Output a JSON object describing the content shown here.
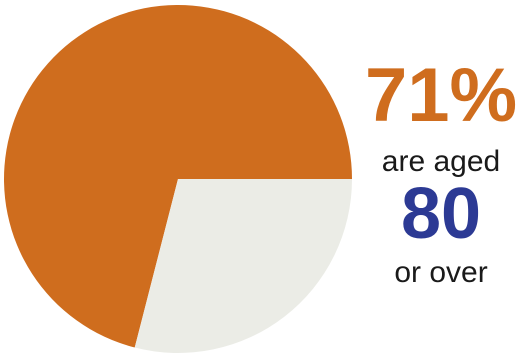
{
  "chart_data": {
    "type": "pie",
    "title": "",
    "slices": [
      {
        "label": "aged 80 or over",
        "value": 71,
        "color": "#cf6d1e"
      },
      {
        "label": "",
        "value": 29,
        "color": "#ebece6"
      }
    ]
  },
  "callout": {
    "percent": "71%",
    "line1": "are aged",
    "age": "80",
    "line2": "or over"
  },
  "colors": {
    "accent": "#cf6d1e",
    "age": "#2c3a94",
    "rest": "#ebece6"
  }
}
